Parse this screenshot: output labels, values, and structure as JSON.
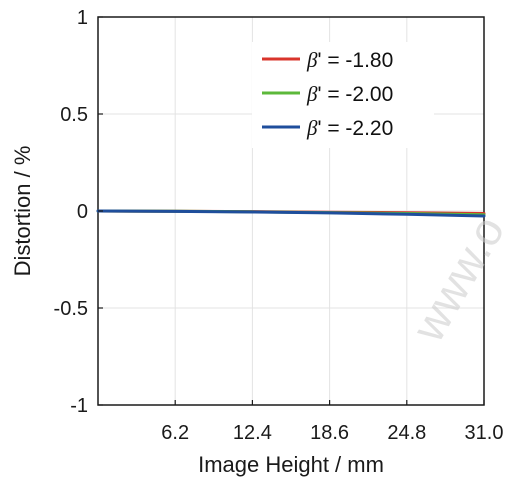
{
  "chart_data": {
    "type": "line",
    "title": "",
    "xlabel": "Image Height / mm",
    "ylabel": "Distortion / %",
    "xlim": [
      0,
      31.0
    ],
    "ylim": [
      -1,
      1
    ],
    "xticks": [
      6.2,
      12.4,
      18.6,
      24.8,
      31.0
    ],
    "xtick_labels": [
      "6.2",
      "12.4",
      "18.6",
      "24.8",
      "31.0"
    ],
    "yticks": [
      1,
      0.5,
      0,
      -0.5,
      -1
    ],
    "ytick_labels": [
      "1",
      "0.5",
      "0",
      "-0.5",
      "-1"
    ],
    "grid": true,
    "legend_position": "top-right",
    "watermark": "www.o",
    "series": [
      {
        "name_symbol": "β",
        "name_rest": "' = -1.80",
        "color": "#d9342b",
        "x": [
          0,
          6.2,
          12.4,
          18.6,
          24.8,
          31.0
        ],
        "y": [
          0,
          -0.001,
          -0.003,
          -0.006,
          -0.009,
          -0.013
        ]
      },
      {
        "name_symbol": "β",
        "name_rest": "' = -2.00",
        "color": "#5cb83a",
        "x": [
          0,
          6.2,
          12.4,
          18.6,
          24.8,
          31.0
        ],
        "y": [
          0,
          -0.001,
          -0.004,
          -0.008,
          -0.013,
          -0.019
        ]
      },
      {
        "name_symbol": "β",
        "name_rest": "' = -2.20",
        "color": "#1f4e9c",
        "x": [
          0,
          6.2,
          12.4,
          18.6,
          24.8,
          31.0
        ],
        "y": [
          0,
          -0.002,
          -0.005,
          -0.01,
          -0.017,
          -0.026
        ]
      }
    ]
  }
}
